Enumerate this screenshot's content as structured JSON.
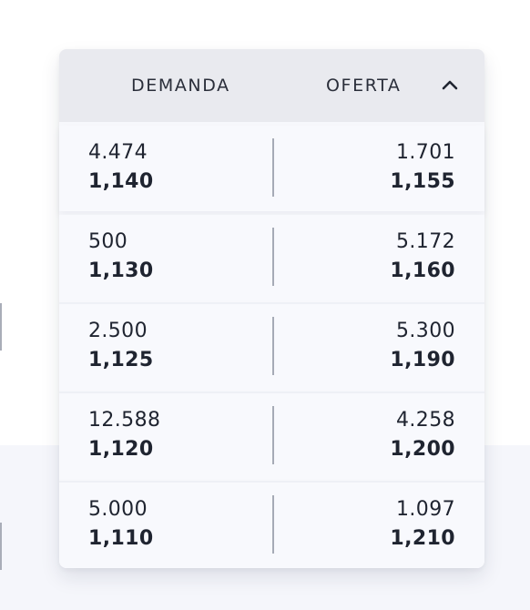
{
  "order_book": {
    "header": {
      "bid_label": "DEMANDA",
      "ask_label": "OFERTA",
      "toggle_icon": "chevron-up-icon"
    },
    "rows": [
      {
        "bid_qty": "4.474",
        "bid_price": "1,140",
        "ask_qty": "1.701",
        "ask_price": "1,155"
      },
      {
        "bid_qty": "500",
        "bid_price": "1,130",
        "ask_qty": "5.172",
        "ask_price": "1,160"
      },
      {
        "bid_qty": "2.500",
        "bid_price": "1,125",
        "ask_qty": "5.300",
        "ask_price": "1,190"
      },
      {
        "bid_qty": "12.588",
        "bid_price": "1,120",
        "ask_qty": "4.258",
        "ask_price": "1,200"
      },
      {
        "bid_qty": "5.000",
        "bid_price": "1,110",
        "ask_qty": "1.097",
        "ask_price": "1,210"
      }
    ]
  },
  "colors": {
    "header_bg": "#e9eaef",
    "row_bg": "#f8f9fd",
    "text": "#1f2430",
    "divider": "#a6abb6"
  }
}
